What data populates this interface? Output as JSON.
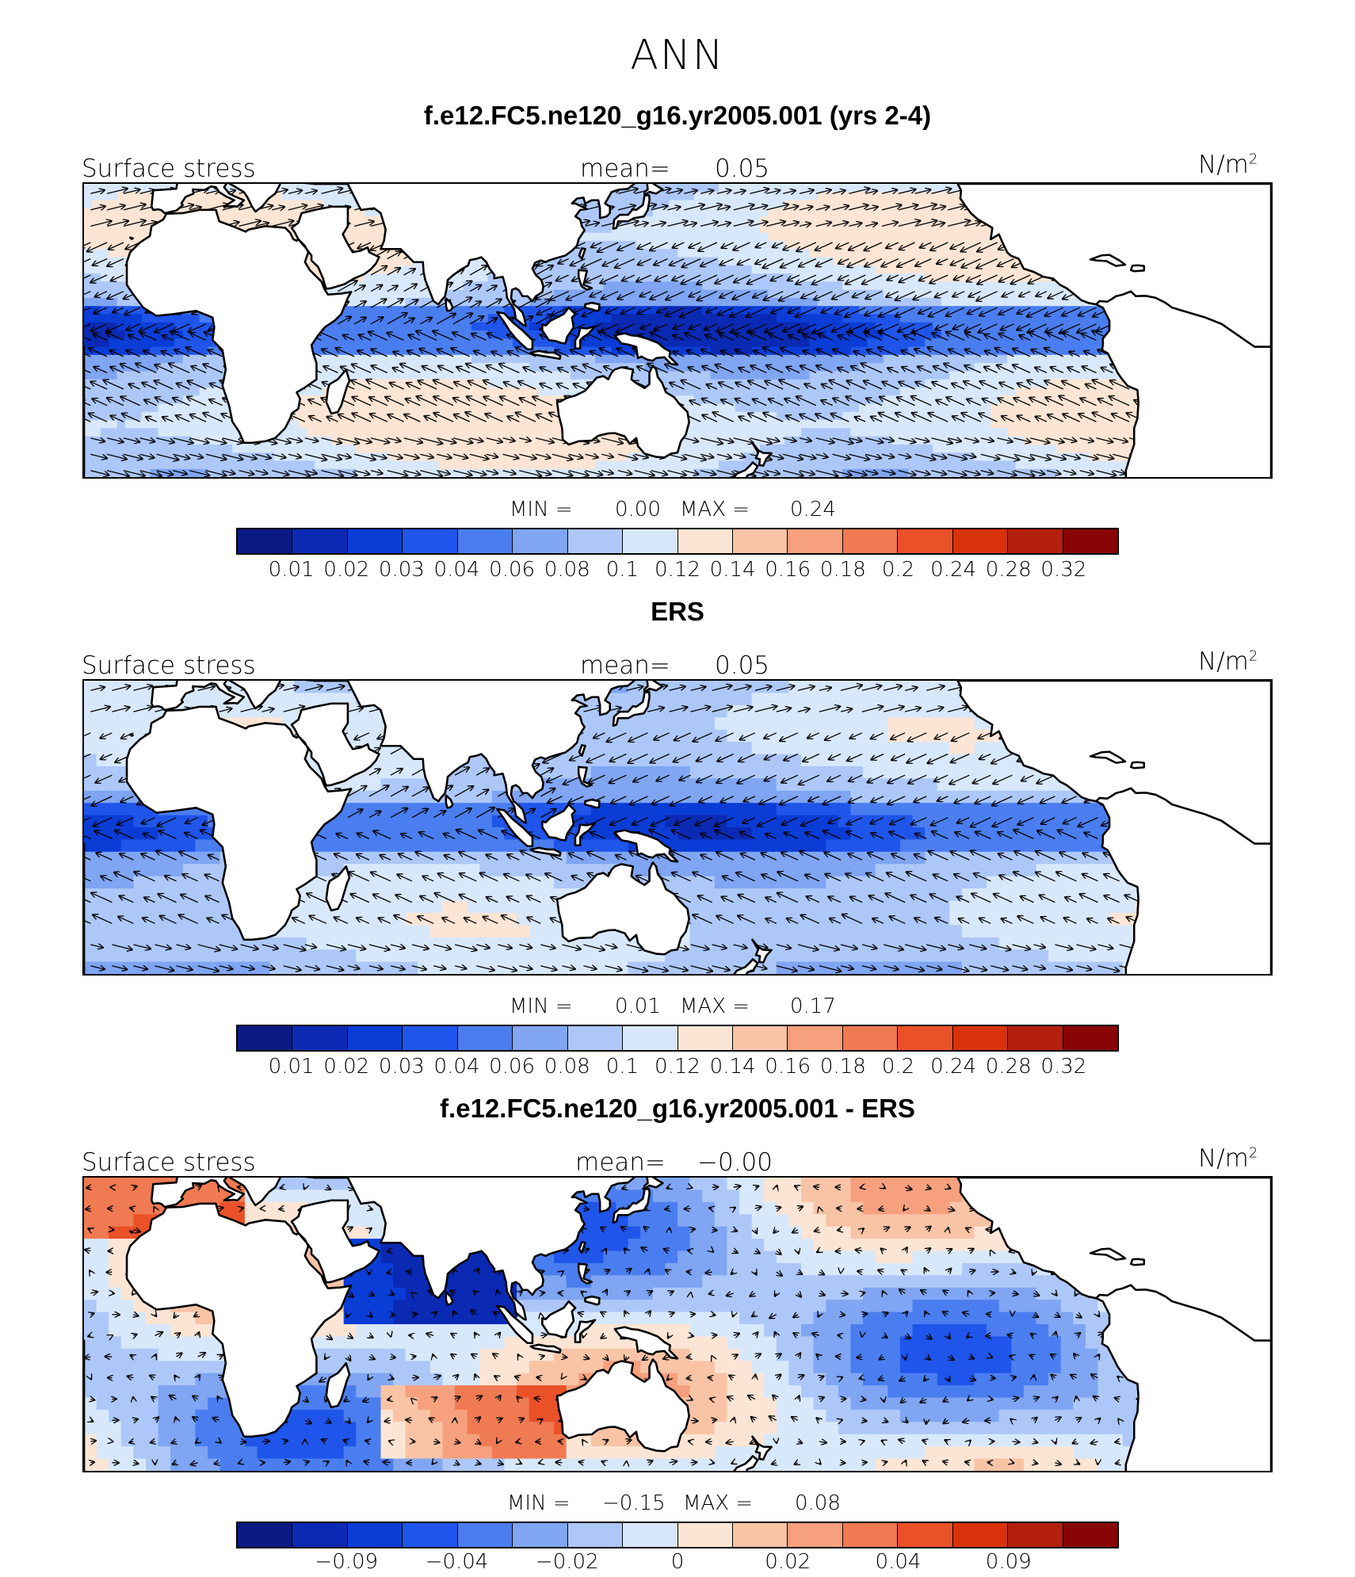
{
  "season": "ANN",
  "palette": {
    "land": "#ffffff",
    "coast": "#000000",
    "arrow": "#000000",
    "swatches": [
      "#0a1a84",
      "#0a2ab4",
      "#0a3cd6",
      "#1f55ea",
      "#4a7ef0",
      "#7fa5f3",
      "#adc8f8",
      "#d8e8fb",
      "#fce5d4",
      "#f9c3a6",
      "#f6a07e",
      "#f07a52",
      "#eb5128",
      "#d8320c",
      "#b31f0c",
      "#870505"
    ]
  },
  "panels": [
    {
      "title": "f.e12.FC5.ne120_g16.yr2005.001 (yrs 2-4)",
      "field_label": "Surface stress",
      "mean_label": "mean=",
      "mean_value": "0.05",
      "units_label": "N/m",
      "units_exp": "2",
      "min_label": "MIN =",
      "min_value": "0.00",
      "max_label": "MAX =",
      "max_value": "0.24",
      "colorbar_ticks": [
        "0.01",
        "0.02",
        "0.03",
        "0.04",
        "0.06",
        "0.08",
        "0.1",
        "0.12",
        "0.14",
        "0.16",
        "0.18",
        "0.2",
        "0.24",
        "0.28",
        "0.32"
      ],
      "fill_style": "magnitude-model"
    },
    {
      "title": "ERS",
      "field_label": "Surface stress",
      "mean_label": "mean=",
      "mean_value": "0.05",
      "units_label": "N/m",
      "units_exp": "2",
      "min_label": "MIN =",
      "min_value": "0.01",
      "max_label": "MAX =",
      "max_value": "0.17",
      "colorbar_ticks": [
        "0.01",
        "0.02",
        "0.03",
        "0.04",
        "0.06",
        "0.08",
        "0.1",
        "0.12",
        "0.14",
        "0.16",
        "0.18",
        "0.2",
        "0.24",
        "0.28",
        "0.32"
      ],
      "fill_style": "magnitude-obs"
    },
    {
      "title": "f.e12.FC5.ne120_g16.yr2005.001 - ERS",
      "field_label": "Surface stress",
      "mean_label": "mean=",
      "mean_value": "−0.00",
      "units_label": "N/m",
      "units_exp": "2",
      "min_label": "MIN =",
      "min_value": "−0.15",
      "max_label": "MAX =",
      "max_value": "0.08",
      "colorbar_ticks": [
        "−0.09",
        "−0.04",
        "−0.02",
        "0",
        "0.02",
        "0.04",
        "0.09"
      ],
      "fill_style": "difference"
    }
  ]
}
